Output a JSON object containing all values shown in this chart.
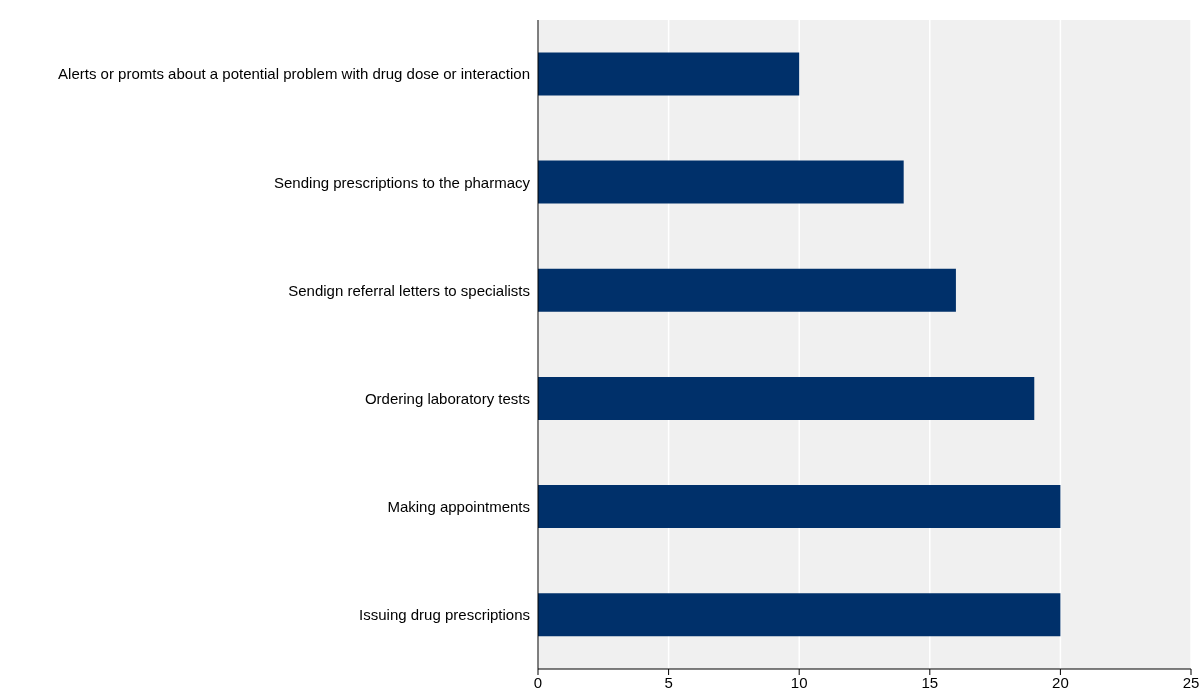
{
  "chart_data": {
    "type": "bar",
    "orientation": "horizontal",
    "categories": [
      "Alerts or promts about a potential problem with drug dose or interaction",
      "Sending prescriptions to the pharmacy",
      "Sendign referral letters to specialists",
      "Ordering laboratory tests",
      "Making appointments",
      "Issuing drug prescriptions"
    ],
    "values": [
      10,
      14,
      16,
      19,
      20,
      20
    ],
    "color": "#00306a",
    "xlim": [
      0,
      25
    ],
    "xticks": [
      0,
      5,
      10,
      15,
      20,
      25
    ],
    "grid": "x"
  }
}
